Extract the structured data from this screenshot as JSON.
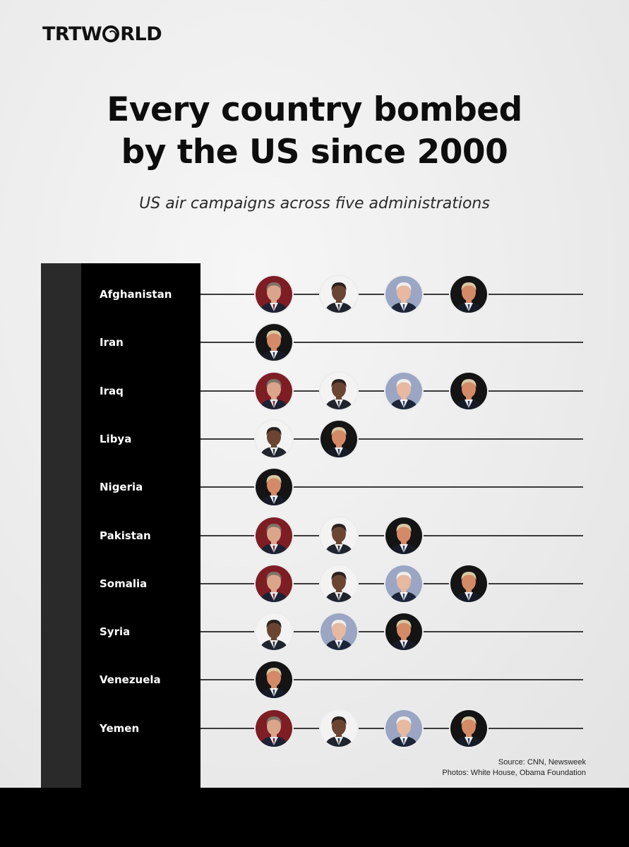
{
  "brand": {
    "logo_left": "TRT",
    "logo_right": "RLD"
  },
  "header": {
    "title_line1": "Every country bombed",
    "title_line2": "by the US since 2000",
    "subtitle": "US air campaigns across five administrations"
  },
  "presidents": {
    "bush": {
      "icon": "bush-portrait",
      "bg": "#7d1d24",
      "skin": "#d9a58b",
      "hair": "#7f7468",
      "suit": "#1c2233",
      "shirt": "#e8e8e8",
      "tie": "#8a1d2a"
    },
    "obama": {
      "icon": "obama-portrait",
      "bg": "#f3f3f3",
      "skin": "#6b4532",
      "hair": "#2a211d",
      "suit": "#20242c",
      "shirt": "#ededed",
      "tie": "#2b2f3a"
    },
    "biden": {
      "icon": "biden-portrait",
      "bg": "#9aa6c4",
      "skin": "#e6b9a0",
      "hair": "#f0eeea",
      "suit": "#1d2638",
      "shirt": "#f5f5f5",
      "tie": "#2b3f7a"
    },
    "trump": {
      "icon": "trump-portrait",
      "bg": "#141414",
      "skin": "#d48a66",
      "hair": "#d9c8a4",
      "suit": "#161b26",
      "shirt": "#f0f0f0",
      "tie": "#2e3b6a"
    }
  },
  "rows": [
    {
      "country": "Afghanistan",
      "administrations": [
        "bush",
        "obama",
        "biden",
        "trump"
      ]
    },
    {
      "country": "Iran",
      "administrations": [
        "trump"
      ]
    },
    {
      "country": "Iraq",
      "administrations": [
        "bush",
        "obama",
        "biden",
        "trump"
      ]
    },
    {
      "country": "Libya",
      "administrations": [
        "obama",
        "trump"
      ]
    },
    {
      "country": "Nigeria",
      "administrations": [
        "trump"
      ]
    },
    {
      "country": "Pakistan",
      "administrations": [
        "bush",
        "obama",
        "trump"
      ]
    },
    {
      "country": "Somalia",
      "administrations": [
        "bush",
        "obama",
        "biden",
        "trump"
      ]
    },
    {
      "country": "Syria",
      "administrations": [
        "obama",
        "biden",
        "trump"
      ]
    },
    {
      "country": "Venezuela",
      "administrations": [
        "trump"
      ]
    },
    {
      "country": "Yemen",
      "administrations": [
        "bush",
        "obama",
        "biden",
        "trump"
      ]
    }
  ],
  "footer": {
    "source": "Source: CNN, Newsweek",
    "photos": "Photos: White House, Obama Foundation"
  }
}
